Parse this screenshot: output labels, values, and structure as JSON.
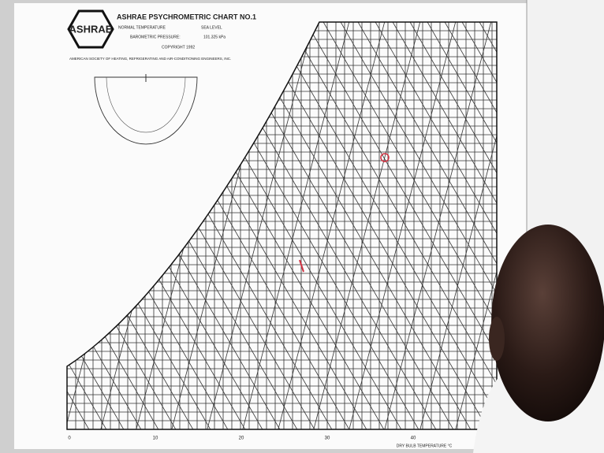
{
  "logo": "ASHRAE",
  "header": {
    "title": "ASHRAE PSYCHROMETRIC CHART NO.1",
    "temperature_label": "NORMAL TEMPERATURE",
    "elevation": "SEA LEVEL",
    "pressure_label": "BAROMETRIC PRESSURE:",
    "pressure": "101.325 kPa",
    "copyright": "COPYRIGHT 1992",
    "publisher": "AMERICAN SOCIETY OF HEATING, REFRIGERATING AND AIR-CONDITIONING ENGINEERS, INC."
  },
  "x_axis": {
    "title": "DRY BULB TEMPERATURE °C",
    "labels": [
      "0",
      "10",
      "20",
      "30",
      "40"
    ]
  }
}
